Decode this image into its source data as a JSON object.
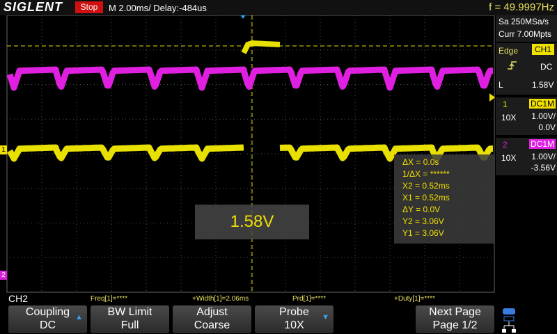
{
  "header": {
    "brand": "SIGLENT",
    "status": "Stop",
    "timebase": "M 2.00ms/ Delay:-484us",
    "frequency": "f = 49.9997Hz"
  },
  "side_panel": {
    "sample_rate": "Sa 250MSa/s",
    "memory": "Curr 7.00Mpts",
    "trigger": {
      "type": "Edge",
      "source": "CH1",
      "coupling": "DC",
      "level_label": "L",
      "level": "1.58V"
    },
    "channels": [
      {
        "number": "1",
        "coupling": "DC1M",
        "probe": "10X",
        "scale": "1.00V/",
        "offset": "0.0V"
      },
      {
        "number": "2",
        "coupling": "DC1M",
        "probe": "10X",
        "scale": "1.00V/",
        "offset": "-3.56V"
      }
    ]
  },
  "screen": {
    "trigger_level_popup": "1.58V",
    "channel_markers": [
      "1",
      "2"
    ],
    "cursors": [
      "ΔX = 0.0s",
      "1/ΔX = ******",
      "X2 = 0.52ms",
      "X1 = 0.52ms",
      "ΔY = 0.0V",
      "Y2 = 3.06V",
      "Y1 = 3.06V"
    ]
  },
  "measurements": {
    "source": "CH2",
    "items": [
      "Freq[1]=****",
      "+Width[1]=2.06ms",
      "Prd[1]=****",
      "+Duty[1]=****"
    ]
  },
  "menu": [
    {
      "label": "Coupling",
      "value": "DC"
    },
    {
      "label": "BW Limit",
      "value": "Full"
    },
    {
      "label": "Adjust",
      "value": "Coarse"
    },
    {
      "label": "Probe",
      "value": "10X"
    },
    {
      "label": "Next Page",
      "value": "Page 1/2"
    }
  ]
}
